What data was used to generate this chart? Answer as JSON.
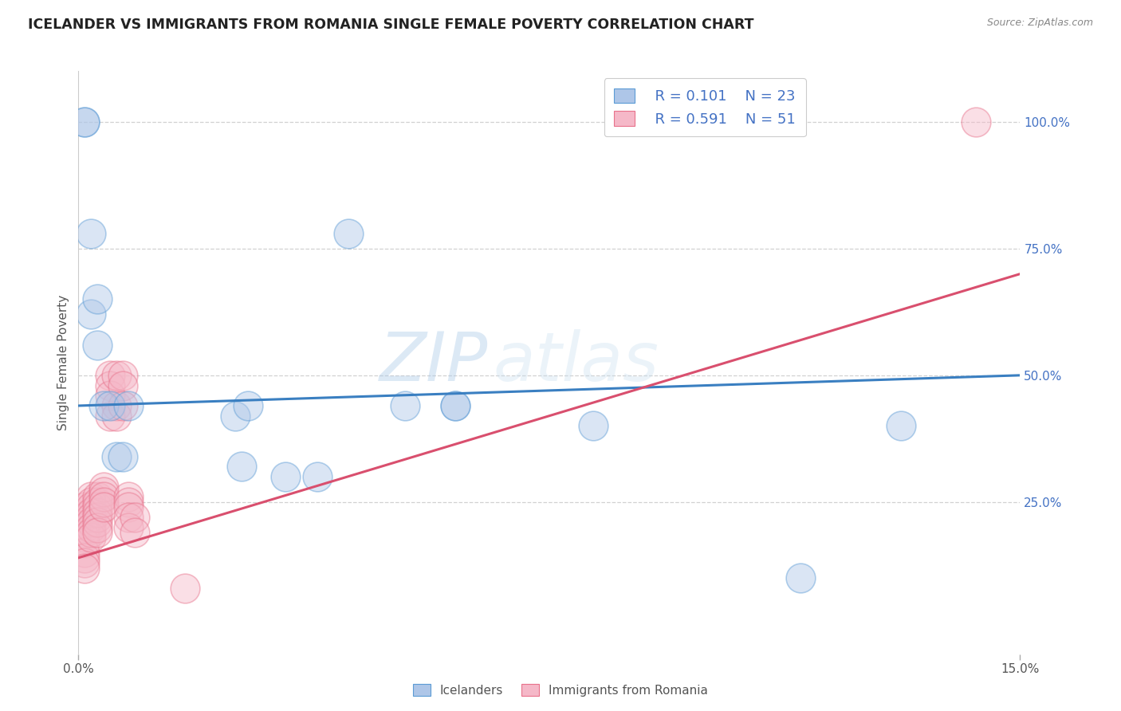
{
  "title": "ICELANDER VS IMMIGRANTS FROM ROMANIA SINGLE FEMALE POVERTY CORRELATION CHART",
  "source": "Source: ZipAtlas.com",
  "ylabel": "Single Female Poverty",
  "xlim": [
    0.0,
    0.15
  ],
  "ylim": [
    -0.05,
    1.1
  ],
  "blue_color": "#aec6e8",
  "pink_color": "#f5b8c8",
  "blue_edge_color": "#5b9bd5",
  "pink_edge_color": "#e8718a",
  "blue_line_color": "#3a7fc1",
  "pink_line_color": "#d94f6e",
  "blue_text": "#4472c4",
  "grid_color": "#cccccc",
  "bg_color": "#ffffff",
  "watermark_zip": "ZIP",
  "watermark_atlas": "atlas",
  "icelanders_x": [
    0.001,
    0.001,
    0.002,
    0.002,
    0.003,
    0.003,
    0.004,
    0.005,
    0.006,
    0.007,
    0.008,
    0.025,
    0.026,
    0.027,
    0.033,
    0.038,
    0.043,
    0.052,
    0.06,
    0.06,
    0.082,
    0.115,
    0.131
  ],
  "icelanders_y": [
    1.0,
    1.0,
    0.62,
    0.78,
    0.65,
    0.56,
    0.44,
    0.44,
    0.34,
    0.34,
    0.44,
    0.42,
    0.32,
    0.44,
    0.3,
    0.3,
    0.78,
    0.44,
    0.44,
    0.44,
    0.4,
    0.1,
    0.4
  ],
  "romania_x": [
    0.001,
    0.001,
    0.001,
    0.001,
    0.001,
    0.001,
    0.001,
    0.001,
    0.001,
    0.001,
    0.002,
    0.002,
    0.002,
    0.002,
    0.002,
    0.002,
    0.002,
    0.002,
    0.002,
    0.003,
    0.003,
    0.003,
    0.003,
    0.003,
    0.003,
    0.003,
    0.003,
    0.004,
    0.004,
    0.004,
    0.004,
    0.004,
    0.005,
    0.005,
    0.005,
    0.005,
    0.006,
    0.006,
    0.006,
    0.007,
    0.007,
    0.007,
    0.008,
    0.008,
    0.008,
    0.008,
    0.008,
    0.009,
    0.009,
    0.017,
    0.143
  ],
  "romania_y": [
    0.24,
    0.22,
    0.2,
    0.19,
    0.18,
    0.17,
    0.15,
    0.14,
    0.13,
    0.12,
    0.26,
    0.25,
    0.24,
    0.23,
    0.22,
    0.21,
    0.2,
    0.19,
    0.18,
    0.26,
    0.25,
    0.24,
    0.23,
    0.22,
    0.21,
    0.2,
    0.19,
    0.28,
    0.27,
    0.26,
    0.25,
    0.24,
    0.5,
    0.48,
    0.46,
    0.42,
    0.5,
    0.44,
    0.42,
    0.5,
    0.48,
    0.44,
    0.26,
    0.25,
    0.24,
    0.22,
    0.2,
    0.22,
    0.19,
    0.08,
    1.0
  ],
  "blue_trend": [
    0.44,
    0.5
  ],
  "pink_trend": [
    0.14,
    0.7
  ],
  "ytick_positions": [
    0.25,
    0.5,
    0.75,
    1.0
  ],
  "ytick_labels": [
    "25.0%",
    "50.0%",
    "75.0%",
    "100.0%"
  ]
}
